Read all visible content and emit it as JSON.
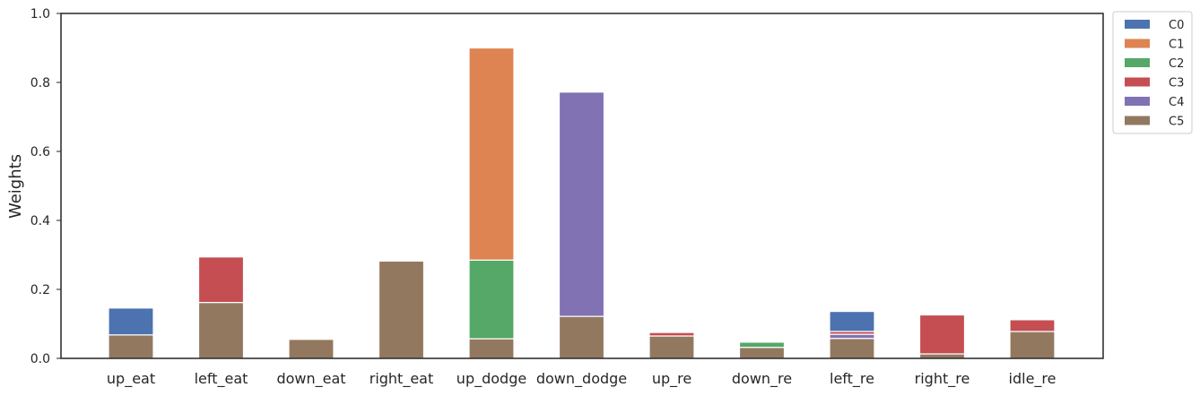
{
  "chart_data": {
    "type": "bar",
    "stacked": true,
    "categories": [
      "up_eat",
      "left_eat",
      "down_eat",
      "right_eat",
      "up_dodge",
      "down_dodge",
      "up_re",
      "down_re",
      "left_re",
      "right_re",
      "idle_re"
    ],
    "series": [
      {
        "name": "C5",
        "color": "#937860",
        "values": [
          0.068,
          0.162,
          0.055,
          0.282,
          0.057,
          0.122,
          0.065,
          0.032,
          0.058,
          0.013,
          0.078
        ]
      },
      {
        "name": "C4",
        "color": "#8172b3",
        "values": [
          0,
          0,
          0,
          0,
          0,
          0.65,
          0,
          0,
          0.012,
          0,
          0
        ]
      },
      {
        "name": "C3",
        "color": "#c44e52",
        "values": [
          0,
          0.132,
          0,
          0,
          0,
          0,
          0.01,
          0,
          0.008,
          0.113,
          0.034
        ]
      },
      {
        "name": "C2",
        "color": "#55a868",
        "values": [
          0,
          0,
          0,
          0,
          0.228,
          0,
          0,
          0.015,
          0,
          0,
          0
        ]
      },
      {
        "name": "C1",
        "color": "#dd8452",
        "values": [
          0,
          0,
          0,
          0,
          0.615,
          0,
          0,
          0,
          0,
          0,
          0
        ]
      },
      {
        "name": "C0",
        "color": "#4c72b0",
        "values": [
          0.078,
          0,
          0,
          0,
          0,
          0,
          0,
          0,
          0.058,
          0,
          0
        ]
      }
    ],
    "legend_order": [
      "C0",
      "C1",
      "C2",
      "C3",
      "C4",
      "C5"
    ],
    "legend_position": "outside-top-right",
    "ylabel": "Weights",
    "xlabel": "",
    "ylim": [
      0,
      1.0
    ],
    "yticks": [
      "0.0",
      "0.2",
      "0.4",
      "0.6",
      "0.8",
      "1.0"
    ],
    "grid": false
  }
}
